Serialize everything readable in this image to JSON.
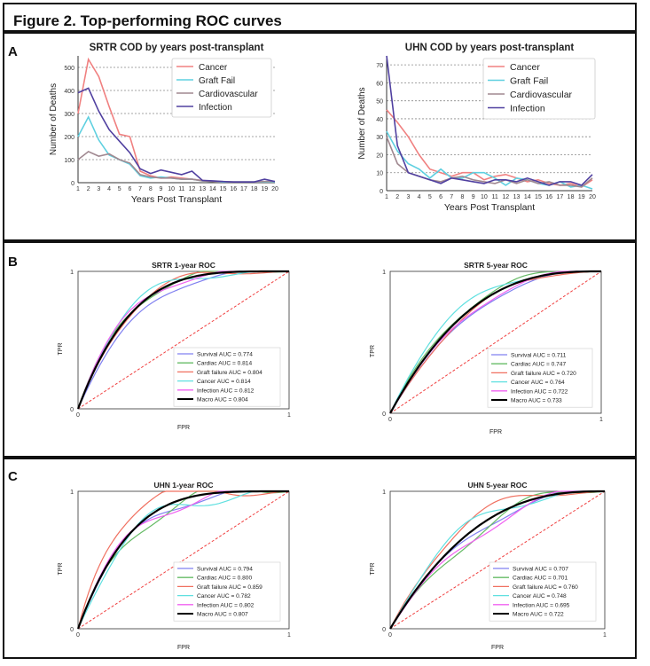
{
  "figure": {
    "title": "Figure 2. Top-performing ROC curves",
    "panel_letters": [
      "A",
      "B",
      "C"
    ]
  },
  "chart_data": [
    {
      "id": "srtr_cod",
      "type": "line",
      "title": "SRTR COD by years post-transplant",
      "xlabel": "Years Post Transplant",
      "ylabel": "Number of Deaths",
      "x": [
        1,
        2,
        3,
        4,
        5,
        6,
        7,
        8,
        9,
        10,
        11,
        12,
        13,
        14,
        15,
        16,
        17,
        18,
        19,
        20
      ],
      "xlim": [
        1,
        20
      ],
      "ylim": [
        0,
        550
      ],
      "yticks": [
        0,
        100,
        200,
        300,
        400,
        500
      ],
      "grid": "horizontal dotted",
      "legend_position": "top-right",
      "series": [
        {
          "name": "Cancer",
          "color": "#f08080",
          "values": [
            300,
            535,
            460,
            330,
            210,
            200,
            50,
            30,
            20,
            25,
            20,
            15,
            10,
            5,
            3,
            3,
            3,
            3,
            3,
            5
          ]
        },
        {
          "name": "Graft Fail",
          "color": "#5fd0e0",
          "values": [
            200,
            285,
            185,
            120,
            100,
            80,
            30,
            20,
            25,
            20,
            15,
            15,
            8,
            5,
            3,
            3,
            3,
            3,
            3,
            3
          ]
        },
        {
          "name": "Cardiovascular",
          "color": "#a08890",
          "values": [
            100,
            135,
            115,
            125,
            100,
            85,
            35,
            25,
            20,
            20,
            15,
            15,
            8,
            5,
            5,
            3,
            3,
            3,
            5,
            5
          ]
        },
        {
          "name": "Infection",
          "color": "#5040a0",
          "values": [
            390,
            410,
            310,
            230,
            180,
            130,
            60,
            40,
            55,
            45,
            35,
            50,
            10,
            8,
            5,
            3,
            3,
            3,
            15,
            5
          ]
        }
      ]
    },
    {
      "id": "uhn_cod",
      "type": "line",
      "title": "UHN COD by years post-transplant",
      "xlabel": "Years Post Transplant",
      "ylabel": "Number of Deaths",
      "x": [
        1,
        2,
        3,
        4,
        5,
        6,
        7,
        8,
        9,
        10,
        11,
        12,
        13,
        14,
        15,
        16,
        17,
        18,
        19,
        20
      ],
      "xlim": [
        1,
        20
      ],
      "ylim": [
        0,
        75
      ],
      "yticks": [
        0,
        10,
        20,
        30,
        40,
        50,
        60,
        70
      ],
      "grid": "horizontal dotted",
      "legend_position": "top-right",
      "series": [
        {
          "name": "Cancer",
          "color": "#f08080",
          "values": [
            45,
            38,
            30,
            20,
            12,
            10,
            8,
            10,
            10,
            6,
            8,
            9,
            7,
            5,
            6,
            4,
            3,
            4,
            2,
            6
          ]
        },
        {
          "name": "Graft Fail",
          "color": "#5fd0e0",
          "values": [
            33,
            22,
            15,
            12,
            7,
            12,
            7,
            7,
            10,
            10,
            7,
            3,
            7,
            6,
            4,
            3,
            5,
            2,
            3,
            1
          ]
        },
        {
          "name": "Cardiovascular",
          "color": "#a08890",
          "values": [
            30,
            15,
            10,
            8,
            6,
            5,
            7,
            8,
            6,
            5,
            4,
            6,
            4,
            6,
            4,
            5,
            3,
            3,
            2,
            7
          ]
        },
        {
          "name": "Infection",
          "color": "#5040a0",
          "values": [
            75,
            25,
            10,
            8,
            6,
            4,
            7,
            6,
            5,
            4,
            6,
            6,
            5,
            7,
            5,
            3,
            5,
            5,
            3,
            9
          ]
        }
      ]
    },
    {
      "id": "srtr_1y",
      "type": "line",
      "title": "SRTR 1-year ROC",
      "xlabel": "FPR",
      "ylabel": "TPR",
      "xlim": [
        0,
        1
      ],
      "ylim": [
        0,
        1
      ],
      "tick_labels": [
        "0",
        "1"
      ],
      "legend_position": "lower-right",
      "series": [
        {
          "name": "Survival AUC = 0.774",
          "color": "#8080f0",
          "auc": 0.774
        },
        {
          "name": "Cardiac AUC = 0.814",
          "color": "#66bb66",
          "auc": 0.814
        },
        {
          "name": "Graft failure AUC = 0.804",
          "color": "#f07060",
          "auc": 0.804
        },
        {
          "name": "Cancer AUC = 0.814",
          "color": "#60e0e0",
          "auc": 0.814
        },
        {
          "name": "Infection AUC = 0.812",
          "color": "#f060f0",
          "auc": 0.812
        },
        {
          "name": "Macro AUC = 0.804",
          "color": "#000000",
          "auc": 0.804
        }
      ]
    },
    {
      "id": "srtr_5y",
      "type": "line",
      "title": "SRTR 5-year ROC",
      "xlabel": "FPR",
      "ylabel": "TPR",
      "xlim": [
        0,
        1
      ],
      "ylim": [
        0,
        1
      ],
      "tick_labels": [
        "0",
        "1"
      ],
      "legend_position": "lower-right",
      "series": [
        {
          "name": "Survival AUC = 0.711",
          "color": "#8080f0",
          "auc": 0.711
        },
        {
          "name": "Cardiac AUC = 0.747",
          "color": "#66bb66",
          "auc": 0.747
        },
        {
          "name": "Graft failure AUC = 0.720",
          "color": "#f07060",
          "auc": 0.72
        },
        {
          "name": "Cancer AUC = 0.764",
          "color": "#60e0e0",
          "auc": 0.764
        },
        {
          "name": "Infection AUC = 0.722",
          "color": "#f060f0",
          "auc": 0.722
        },
        {
          "name": "Macro AUC = 0.733",
          "color": "#000000",
          "auc": 0.733
        }
      ]
    },
    {
      "id": "uhn_1y",
      "type": "line",
      "title": "UHN 1-year ROC",
      "xlabel": "FPR",
      "ylabel": "TPR",
      "xlim": [
        0,
        1
      ],
      "ylim": [
        0,
        1
      ],
      "tick_labels": [
        "0",
        "1"
      ],
      "legend_position": "lower-right",
      "series": [
        {
          "name": "Survival AUC = 0.794",
          "color": "#8080f0",
          "auc": 0.794
        },
        {
          "name": "Cardiac AUC = 0.800",
          "color": "#66bb66",
          "auc": 0.8
        },
        {
          "name": "Graft failure AUC = 0.859",
          "color": "#f07060",
          "auc": 0.859
        },
        {
          "name": "Cancer AUC = 0.782",
          "color": "#60e0e0",
          "auc": 0.782
        },
        {
          "name": "Infection AUC = 0.802",
          "color": "#f060f0",
          "auc": 0.802
        },
        {
          "name": "Macro AUC = 0.807",
          "color": "#000000",
          "auc": 0.807
        }
      ]
    },
    {
      "id": "uhn_5y",
      "type": "line",
      "title": "UHN 5-year ROC",
      "xlabel": "FPR",
      "ylabel": "TPR",
      "xlim": [
        0,
        1
      ],
      "ylim": [
        0,
        1
      ],
      "tick_labels": [
        "0",
        "1"
      ],
      "legend_position": "lower-right",
      "series": [
        {
          "name": "Survival AUC = 0.707",
          "color": "#8080f0",
          "auc": 0.707
        },
        {
          "name": "Cardiac AUC = 0.701",
          "color": "#66bb66",
          "auc": 0.701
        },
        {
          "name": "Graft failure AUC = 0.760",
          "color": "#f07060",
          "auc": 0.76
        },
        {
          "name": "Cancer AUC = 0.748",
          "color": "#60e0e0",
          "auc": 0.748
        },
        {
          "name": "Infection AUC = 0.695",
          "color": "#f060f0",
          "auc": 0.695
        },
        {
          "name": "Macro AUC = 0.722",
          "color": "#000000",
          "auc": 0.722
        }
      ]
    }
  ]
}
